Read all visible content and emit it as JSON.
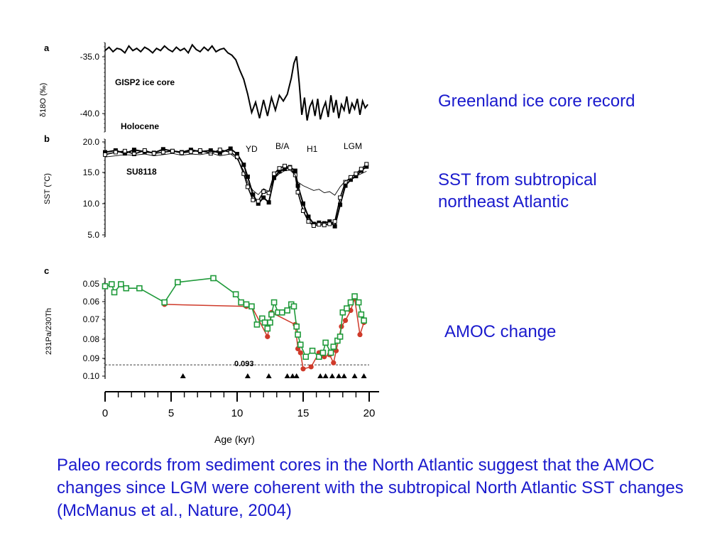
{
  "chart_data": [
    {
      "type": "line",
      "panel_letter": "a",
      "ylabel": "δ18O (‰)",
      "ylim": [
        -42.2,
        -34.4
      ],
      "yticks": [
        "-35.0",
        "-40.0"
      ],
      "xlim": [
        0,
        20
      ],
      "annotations": [
        "GISP2 ice core",
        "Holocene"
      ],
      "series": [
        {
          "x": [
            0.0,
            0.3,
            0.6,
            0.9,
            1.2,
            1.5,
            1.8,
            2.1,
            2.4,
            2.7,
            3.0,
            3.3,
            3.6,
            3.9,
            4.2,
            4.5,
            4.8,
            5.1,
            5.4,
            5.7,
            6.0,
            6.3,
            6.6,
            6.9,
            7.2,
            7.5,
            7.8,
            8.1,
            8.4,
            8.7,
            9.0,
            9.3,
            9.6,
            9.9,
            10.2,
            10.5,
            10.8,
            11.1,
            11.4,
            11.7,
            12.0,
            12.3,
            12.6,
            12.9,
            13.2,
            13.5,
            13.8,
            14.1,
            14.3,
            14.5,
            14.7,
            14.9,
            15.1,
            15.3,
            15.5,
            15.7,
            15.9,
            16.1,
            16.3,
            16.5,
            16.7,
            16.9,
            17.1,
            17.3,
            17.5,
            17.7,
            17.9,
            18.1,
            18.3,
            18.5,
            18.7,
            18.9,
            19.1,
            19.3,
            19.5,
            19.7,
            19.9
          ],
          "values": [
            -35.1,
            -34.8,
            -35.2,
            -34.9,
            -35.0,
            -35.3,
            -34.7,
            -35.1,
            -34.9,
            -35.2,
            -34.8,
            -35.0,
            -35.3,
            -34.9,
            -35.1,
            -34.7,
            -35.0,
            -35.2,
            -34.8,
            -35.1,
            -34.9,
            -35.3,
            -34.6,
            -35.0,
            -35.2,
            -34.8,
            -35.1,
            -34.7,
            -35.2,
            -35.0,
            -34.9,
            -35.3,
            -35.5,
            -35.9,
            -36.8,
            -37.6,
            -38.9,
            -40.5,
            -39.6,
            -41.0,
            -39.4,
            -40.8,
            -39.2,
            -40.3,
            -39.0,
            -39.5,
            -38.9,
            -37.5,
            -36.2,
            -35.6,
            -37.9,
            -40.7,
            -39.2,
            -41.2,
            -40.0,
            -39.5,
            -40.8,
            -39.3,
            -41.1,
            -40.2,
            -39.6,
            -40.9,
            -39.0,
            -40.5,
            -39.4,
            -41.0,
            -39.8,
            -40.3,
            -39.1,
            -40.6,
            -39.7,
            -40.2,
            -39.3,
            -40.7,
            -39.5,
            -40.1,
            -39.8
          ]
        }
      ]
    },
    {
      "type": "line",
      "panel_letter": "b",
      "ylabel": "SST (°C)",
      "ylim": [
        4.4,
        20.8
      ],
      "yticks": [
        "20.0",
        "15.0",
        "10.0",
        "5.0"
      ],
      "xlim": [
        0,
        20
      ],
      "annotations": [
        "SU8118",
        "YD",
        "B/A",
        "H1",
        "LGM"
      ],
      "series": [
        {
          "x": [
            0.0,
            0.8,
            1.5,
            2.2,
            3.0,
            3.7,
            4.4,
            5.1,
            5.8,
            6.5,
            7.2,
            8.0,
            8.7,
            9.5,
            10.0,
            10.5,
            10.8,
            11.2,
            11.6,
            12.0,
            12.4,
            12.8,
            13.2,
            13.6,
            14.0,
            14.4,
            14.6,
            15.0,
            15.4,
            15.8,
            16.2,
            16.6,
            17.0,
            17.4,
            17.8,
            18.2,
            18.6,
            19.0,
            19.4,
            19.8
          ],
          "values": [
            18.6,
            18.9,
            18.4,
            19.0,
            18.7,
            18.5,
            19.1,
            18.8,
            18.6,
            19.0,
            18.7,
            18.9,
            18.5,
            19.2,
            18.3,
            16.5,
            14.5,
            11.5,
            10.0,
            11.0,
            10.2,
            14.3,
            15.4,
            15.8,
            16.1,
            15.5,
            13.0,
            10.0,
            7.8,
            6.6,
            6.8,
            6.7,
            7.0,
            6.2,
            9.8,
            13.0,
            14.0,
            14.6,
            15.5,
            16.2
          ]
        },
        {
          "x": [
            0.0,
            0.8,
            1.5,
            2.2,
            3.0,
            3.7,
            4.4,
            5.1,
            5.8,
            6.5,
            7.2,
            8.0,
            8.7,
            9.5,
            10.0,
            10.5,
            10.8,
            11.2,
            11.6,
            12.0,
            12.4,
            12.8,
            13.2,
            13.6,
            14.0,
            14.4,
            14.6,
            15.0,
            15.4,
            15.8,
            16.2,
            16.6,
            17.0,
            17.4,
            17.8,
            18.2,
            18.6,
            19.0,
            19.4,
            19.8
          ],
          "values": [
            18.2,
            18.6,
            18.8,
            18.3,
            18.9,
            18.4,
            18.6,
            18.8,
            18.5,
            18.7,
            18.9,
            18.4,
            19.0,
            18.6,
            17.8,
            15.0,
            12.8,
            10.6,
            10.4,
            12.0,
            11.8,
            15.0,
            15.9,
            16.3,
            16.0,
            14.8,
            11.9,
            8.8,
            7.0,
            6.3,
            6.5,
            6.4,
            6.6,
            7.0,
            11.0,
            13.6,
            14.4,
            15.0,
            15.8,
            16.6
          ]
        },
        {
          "x": [
            0.0,
            0.8,
            1.5,
            2.2,
            3.0,
            3.7,
            4.4,
            5.1,
            5.8,
            6.5,
            7.2,
            8.0,
            8.7,
            9.5,
            10.0,
            10.5,
            10.8,
            11.2,
            11.6,
            12.0,
            12.4,
            12.8,
            13.2,
            13.6,
            14.0,
            14.4,
            14.6,
            15.0,
            15.4,
            15.8,
            16.2,
            16.6,
            17.0,
            17.4,
            17.8,
            18.2,
            18.6,
            19.0,
            19.4,
            19.8
          ],
          "values": [
            17.8,
            18.0,
            18.2,
            18.1,
            18.3,
            18.0,
            18.2,
            18.4,
            18.1,
            18.3,
            18.2,
            18.5,
            18.0,
            18.3,
            17.5,
            15.5,
            13.5,
            12.2,
            11.5,
            12.5,
            12.0,
            14.2,
            15.0,
            15.5,
            15.6,
            14.8,
            13.6,
            13.0,
            12.6,
            12.2,
            12.4,
            11.8,
            12.0,
            11.4,
            12.8,
            13.8,
            14.2,
            14.6,
            15.0,
            15.4
          ]
        }
      ]
    },
    {
      "type": "line",
      "panel_letter": "c",
      "ylabel": "231Pa/230Th",
      "ylim": [
        0.1,
        0.05
      ],
      "yticks": [
        "0.05",
        "0.06",
        "0.07",
        "0.08",
        "0.09",
        "0.10"
      ],
      "xlim": [
        0,
        20
      ],
      "xlabel": "Age (kyr)",
      "xticks": [
        "0",
        "5",
        "10",
        "15",
        "20"
      ],
      "reference_line": {
        "value": 0.093,
        "label": "0.093"
      },
      "triangle_markers_x": [
        5.9,
        10.8,
        12.4,
        13.8,
        14.2,
        14.5,
        16.3,
        16.7,
        17.2,
        17.7,
        18.1,
        18.9,
        19.6
      ],
      "series": [
        {
          "marker": "open-square",
          "x": [
            0.0,
            0.5,
            0.7,
            1.2,
            1.6,
            2.6,
            4.5,
            5.5,
            8.2,
            9.9,
            10.3,
            10.7,
            11.1,
            11.5,
            11.9,
            12.1,
            12.3,
            12.5,
            12.6,
            12.8,
            13.1,
            13.4,
            13.8,
            14.1,
            14.3,
            14.5,
            14.6,
            14.8,
            15.2,
            15.7,
            16.2,
            16.5,
            16.7,
            17.1,
            17.3,
            17.6,
            17.8,
            18.0,
            18.3,
            18.6,
            18.9,
            19.2,
            19.4,
            19.6
          ],
          "values": [
            0.054,
            0.053,
            0.057,
            0.053,
            0.055,
            0.055,
            0.062,
            0.052,
            0.05,
            0.058,
            0.062,
            0.063,
            0.064,
            0.073,
            0.07,
            0.072,
            0.075,
            0.072,
            0.068,
            0.062,
            0.067,
            0.067,
            0.066,
            0.063,
            0.064,
            0.074,
            0.078,
            0.083,
            0.089,
            0.086,
            0.089,
            0.087,
            0.082,
            0.087,
            0.084,
            0.081,
            0.079,
            0.067,
            0.065,
            0.062,
            0.059,
            0.062,
            0.068,
            0.071
          ]
        },
        {
          "marker": "filled-circle",
          "x": [
            4.5,
            10.7,
            11.1,
            12.3,
            12.6,
            14.4,
            14.6,
            14.8,
            15.0,
            15.6,
            16.2,
            16.6,
            17.0,
            17.3,
            17.5,
            17.9,
            18.2,
            18.6,
            18.9,
            19.3,
            19.6
          ],
          "values": [
            0.063,
            0.064,
            0.064,
            0.079,
            0.067,
            0.073,
            0.085,
            0.087,
            0.095,
            0.094,
            0.087,
            0.089,
            0.088,
            0.092,
            0.086,
            0.074,
            0.071,
            0.066,
            0.06,
            0.078,
            0.072
          ]
        }
      ]
    }
  ],
  "labels": {
    "greenland": "Greenland ice core record",
    "sst_line1": "SST from subtropical",
    "sst_line2": "northeast Atlantic",
    "amoc": "AMOC change"
  },
  "caption": "Paleo records from sediment cores in the North Atlantic suggest that the AMOC changes since LGM were coherent with the subtropical North Atlantic SST changes (McManus et al., Nature, 2004)",
  "colors": {
    "text_blue": "#1a1acd",
    "pa_green": "#1f9a3a",
    "pa_red": "#cf3a2a",
    "ink": "#000000"
  }
}
